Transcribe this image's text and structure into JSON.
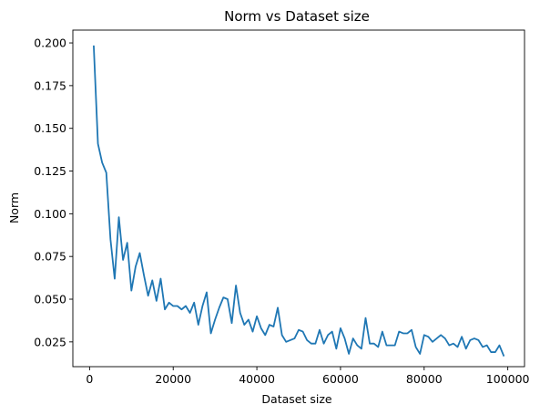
{
  "chart_data": {
    "type": "line",
    "title": "Norm vs Dataset size",
    "xlabel": "Dataset size",
    "ylabel": "Norm",
    "xlim": [
      -4000,
      104000
    ],
    "ylim": [
      0.0105,
      0.2075
    ],
    "xticks": [
      0,
      20000,
      40000,
      60000,
      80000,
      100000
    ],
    "xtick_labels": [
      "0",
      "20000",
      "40000",
      "60000",
      "80000",
      "100000"
    ],
    "yticks": [
      0.025,
      0.05,
      0.075,
      0.1,
      0.125,
      0.15,
      0.175,
      0.2
    ],
    "ytick_labels": [
      "0.025",
      "0.050",
      "0.075",
      "0.100",
      "0.125",
      "0.150",
      "0.175",
      "0.200"
    ],
    "grid": false,
    "line_color": "#1f77b4",
    "series": [
      {
        "x": [
          1000,
          2000,
          3000,
          4000,
          5000,
          6000,
          7000,
          8000,
          9000,
          10000,
          11000,
          12000,
          13000,
          14000,
          15000,
          16000,
          17000,
          18000,
          19000,
          20000,
          21000,
          22000,
          23000,
          24000,
          25000,
          26000,
          27000,
          28000,
          29000,
          30000,
          31000,
          32000,
          33000,
          34000,
          35000,
          36000,
          37000,
          38000,
          39000,
          40000,
          41000,
          42000,
          43000,
          44000,
          45000,
          46000,
          47000,
          48000,
          49000,
          50000,
          51000,
          52000,
          53000,
          54000,
          55000,
          56000,
          57000,
          58000,
          59000,
          60000,
          61000,
          62000,
          63000,
          64000,
          65000,
          66000,
          67000,
          68000,
          69000,
          70000,
          71000,
          72000,
          73000,
          74000,
          75000,
          76000,
          77000,
          78000,
          79000,
          80000,
          81000,
          82000,
          83000,
          84000,
          85000,
          86000,
          87000,
          88000,
          89000,
          90000,
          91000,
          92000,
          93000,
          94000,
          95000,
          96000,
          97000,
          98000,
          99000
        ],
        "values": [
          0.198,
          0.141,
          0.13,
          0.124,
          0.085,
          0.062,
          0.098,
          0.073,
          0.083,
          0.055,
          0.069,
          0.077,
          0.064,
          0.052,
          0.061,
          0.049,
          0.062,
          0.044,
          0.048,
          0.046,
          0.046,
          0.044,
          0.046,
          0.042,
          0.048,
          0.035,
          0.046,
          0.054,
          0.03,
          0.038,
          0.045,
          0.051,
          0.05,
          0.036,
          0.058,
          0.042,
          0.035,
          0.038,
          0.031,
          0.04,
          0.033,
          0.029,
          0.035,
          0.034,
          0.045,
          0.029,
          0.025,
          0.026,
          0.027,
          0.032,
          0.031,
          0.026,
          0.024,
          0.024,
          0.032,
          0.024,
          0.029,
          0.031,
          0.021,
          0.033,
          0.027,
          0.018,
          0.027,
          0.023,
          0.021,
          0.039,
          0.024,
          0.024,
          0.022,
          0.031,
          0.023,
          0.023,
          0.023,
          0.031,
          0.03,
          0.03,
          0.032,
          0.022,
          0.018,
          0.029,
          0.028,
          0.025,
          0.027,
          0.029,
          0.027,
          0.023,
          0.024,
          0.022,
          0.028,
          0.021,
          0.026,
          0.027,
          0.026,
          0.022,
          0.023,
          0.019,
          0.019,
          0.023,
          0.017
        ]
      }
    ]
  }
}
